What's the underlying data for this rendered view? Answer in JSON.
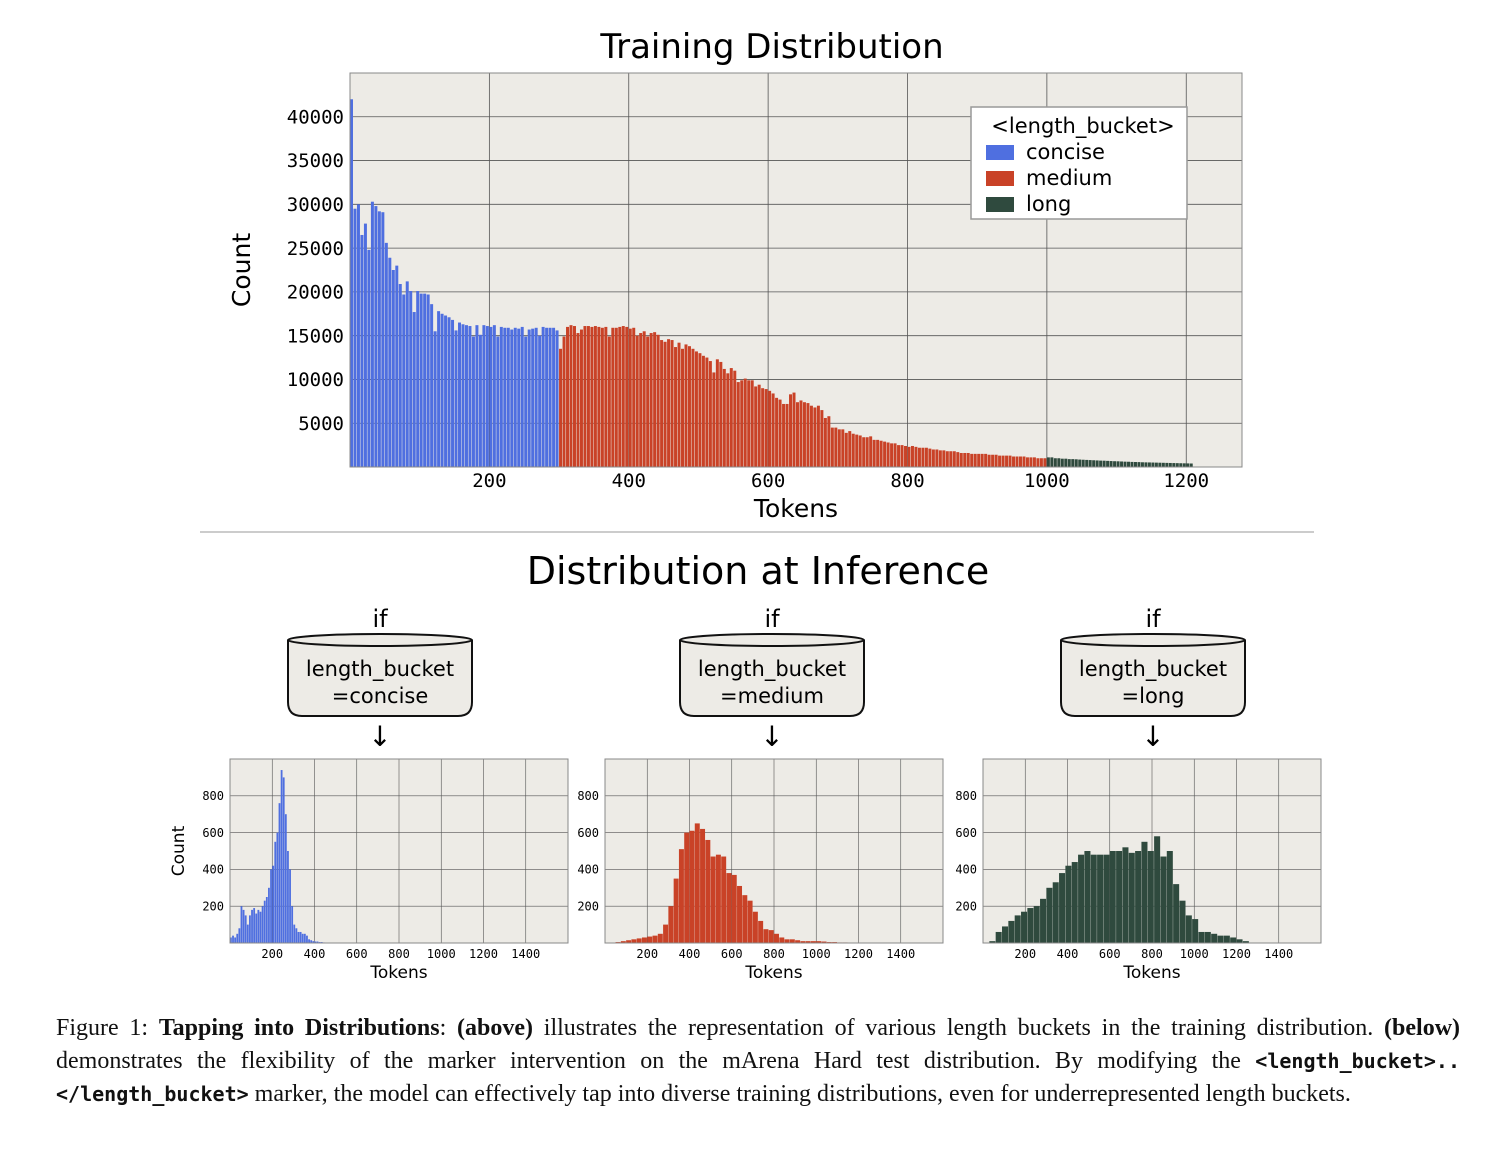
{
  "figure": {
    "top_title": "Training Distribution",
    "bottom_title": "Distribution at Inference",
    "colors": {
      "concise": "#4f6fe0",
      "medium": "#c94227",
      "long": "#2f4a3e",
      "panel_bg": "#edebe6",
      "grid": "#555555"
    },
    "conditions": [
      {
        "if_label": "if",
        "line1": "length_bucket",
        "line2": "=concise",
        "arrow": "↓"
      },
      {
        "if_label": "if",
        "line1": "length_bucket",
        "line2": "=medium",
        "arrow": "↓"
      },
      {
        "if_label": "if",
        "line1": "length_bucket",
        "line2": "=long",
        "arrow": "↓"
      }
    ]
  },
  "chart_data": [
    {
      "type": "bar",
      "title": "Training Distribution",
      "xlabel": "Tokens",
      "ylabel": "Count",
      "xlim": [
        0,
        1280
      ],
      "ylim": [
        0,
        45000
      ],
      "xticks": [
        200,
        400,
        600,
        800,
        1000,
        1200
      ],
      "yticks": [
        5000,
        10000,
        15000,
        20000,
        25000,
        30000,
        35000,
        40000
      ],
      "grid": true,
      "bin_width": 5,
      "legend": {
        "title": "<length_bucket>",
        "position": "top-right",
        "entries": [
          "concise",
          "medium",
          "long"
        ]
      },
      "series": [
        {
          "name": "concise",
          "color": "#4f6fe0",
          "x_start": 0,
          "values": [
            42000,
            29500,
            30000,
            26500,
            27800,
            24800,
            30300,
            29800,
            29200,
            29100,
            25600,
            23900,
            22500,
            23000,
            20900,
            19700,
            21200,
            20100,
            17700,
            20100,
            19800,
            19800,
            19700,
            18600,
            15500,
            17800,
            17500,
            17300,
            17100,
            16800,
            15600,
            16500,
            16300,
            16200,
            16100,
            14900,
            16200,
            15100,
            16200,
            16100,
            16000,
            16200,
            14900,
            16000,
            15900,
            15900,
            15700,
            15900,
            15800,
            16000,
            14900,
            15700,
            15800,
            15900,
            15000,
            16000,
            15900,
            15900,
            15900,
            15600
          ]
        },
        {
          "name": "medium",
          "color": "#c94227",
          "x_start": 300,
          "values": [
            13500,
            14900,
            16000,
            16200,
            16100,
            15300,
            15700,
            16100,
            16100,
            16000,
            16100,
            16000,
            15900,
            16000,
            14900,
            15900,
            15900,
            16000,
            16100,
            16000,
            15800,
            15900,
            15000,
            15300,
            15500,
            14900,
            15300,
            15400,
            15100,
            14500,
            14300,
            14600,
            14500,
            13700,
            14200,
            13500,
            14000,
            13800,
            13500,
            13200,
            13000,
            12700,
            12500,
            12100,
            10800,
            12300,
            12000,
            11200,
            10700,
            11300,
            11000,
            9700,
            9900,
            10100,
            9900,
            9900,
            9200,
            9400,
            9000,
            8900,
            8700,
            8400,
            7900,
            7700,
            7200,
            7200,
            8300,
            8500,
            7400,
            7600,
            7400,
            7300,
            7000,
            6800,
            7000,
            6500,
            5600,
            5800,
            4500,
            4500,
            4300,
            4300,
            3900,
            4100,
            3800,
            3700,
            3600,
            3400,
            3400,
            3500,
            3100,
            3100,
            3000,
            2900,
            2800,
            2700,
            2700,
            2500,
            2500,
            2400,
            2300,
            2400,
            2300,
            2200,
            2200,
            2200,
            2100,
            2000,
            2000,
            1900,
            1900,
            1800,
            1800,
            1800,
            1700,
            1600,
            1600,
            1600,
            1500,
            1500,
            1500,
            1500,
            1500,
            1400,
            1400,
            1400,
            1300,
            1300,
            1300,
            1300,
            1200,
            1200,
            1200,
            1200,
            1100,
            1100,
            1100,
            1000,
            1000,
            1000
          ]
        },
        {
          "name": "long",
          "color": "#2f4a3e",
          "x_start": 1000,
          "values": [
            1100,
            1100,
            1000,
            1000,
            950,
            950,
            900,
            900,
            880,
            850,
            830,
            810,
            790,
            770,
            750,
            730,
            720,
            700,
            680,
            660,
            650,
            630,
            610,
            600,
            580,
            570,
            560,
            540,
            530,
            520,
            510,
            500,
            490,
            480,
            470,
            460,
            450,
            440,
            430,
            420,
            410,
            400
          ]
        }
      ]
    },
    {
      "type": "bar",
      "condition": "length_bucket=concise",
      "xlabel": "Tokens",
      "ylabel": "Count",
      "xlim": [
        0,
        1600
      ],
      "ylim": [
        0,
        1000
      ],
      "xticks": [
        200,
        400,
        600,
        800,
        1000,
        1200,
        1400
      ],
      "yticks": [
        200,
        400,
        600,
        800
      ],
      "grid": true,
      "bin_width": 10,
      "x_start": 0,
      "color": "#4f6fe0",
      "values": [
        30,
        40,
        30,
        50,
        80,
        200,
        180,
        150,
        100,
        150,
        180,
        190,
        160,
        180,
        170,
        200,
        230,
        250,
        300,
        400,
        420,
        550,
        600,
        760,
        940,
        900,
        700,
        500,
        400,
        200,
        100,
        80,
        60,
        60,
        50,
        50,
        40,
        20,
        15,
        10,
        8,
        8,
        5,
        5,
        3,
        2,
        0,
        0,
        0,
        0,
        0,
        0,
        0,
        0,
        0,
        0,
        0,
        0,
        0,
        0,
        0,
        0,
        0,
        0,
        0,
        0,
        0,
        0,
        0,
        0
      ]
    },
    {
      "type": "bar",
      "condition": "length_bucket=medium",
      "xlabel": "Tokens",
      "ylabel": "",
      "xlim": [
        0,
        1600
      ],
      "ylim": [
        0,
        1000
      ],
      "xticks": [
        200,
        400,
        600,
        800,
        1000,
        1200,
        1400
      ],
      "yticks": [
        200,
        400,
        600,
        800
      ],
      "grid": true,
      "bin_width": 25,
      "x_start": 50,
      "color": "#c94227",
      "values": [
        5,
        10,
        15,
        20,
        25,
        30,
        35,
        40,
        50,
        100,
        200,
        350,
        510,
        600,
        610,
        650,
        620,
        560,
        470,
        480,
        470,
        380,
        370,
        310,
        260,
        230,
        170,
        120,
        75,
        70,
        50,
        30,
        20,
        20,
        15,
        10,
        10,
        10,
        10,
        8,
        5,
        5,
        3,
        3,
        2,
        2,
        2
      ]
    },
    {
      "type": "bar",
      "condition": "length_bucket=long",
      "xlabel": "Tokens",
      "ylabel": "",
      "xlim": [
        0,
        1600
      ],
      "ylim": [
        0,
        1000
      ],
      "xticks": [
        200,
        400,
        600,
        800,
        1000,
        1200,
        1400
      ],
      "yticks": [
        200,
        400,
        600,
        800
      ],
      "grid": true,
      "bin_width": 30,
      "x_start": 30,
      "color": "#2f4a3e",
      "values": [
        10,
        60,
        90,
        120,
        150,
        170,
        190,
        200,
        240,
        300,
        330,
        380,
        420,
        440,
        480,
        500,
        480,
        480,
        480,
        500,
        500,
        520,
        490,
        500,
        550,
        500,
        580,
        470,
        500,
        320,
        230,
        150,
        130,
        60,
        60,
        50,
        40,
        40,
        30,
        20,
        10
      ]
    }
  ],
  "caption": {
    "prefix": "Figure 1:",
    "bold_title": "Tapping into Distributions",
    "colon": ":",
    "above_label": "(above)",
    "above_text": " illustrates the representation of various length buckets in the training distribution.",
    "below_label": "(below)",
    "below_text": " demonstrates the flexibility of the marker intervention on the mArena Hard test distribution. By modifying the ",
    "code_text": "<length_bucket>..</length_bucket>",
    "tail_text": " marker, the model can effectively tap into diverse training distributions, even for underrepresented length buckets."
  }
}
